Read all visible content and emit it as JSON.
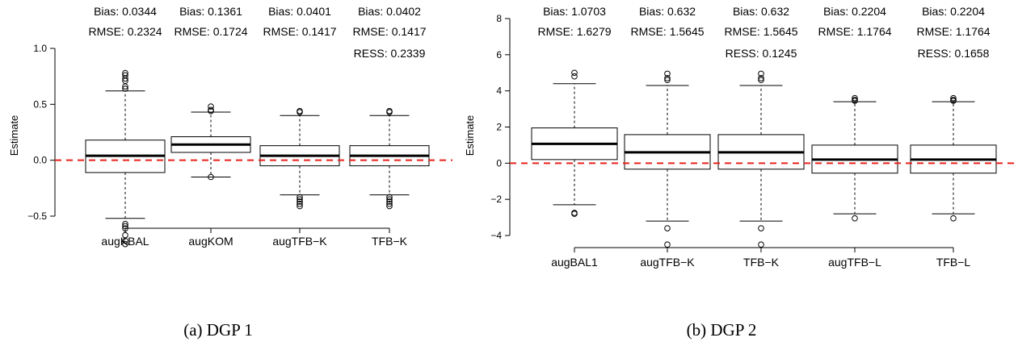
{
  "chart_data": [
    {
      "type": "boxplot",
      "caption": "(a) DGP 1",
      "ylabel": "Estimate",
      "ylim": [
        -0.8,
        1.0
      ],
      "yticks": [
        -0.5,
        0.0,
        0.5,
        1.0
      ],
      "ytick_labels": [
        "−0.5",
        "0.0",
        "0.5",
        "1.0"
      ],
      "reference_line": {
        "y": 0,
        "style": "dashed",
        "color": "#e8221b"
      },
      "boxes": [
        {
          "label": "augKBAL",
          "whisker_low": -0.52,
          "q1": -0.11,
          "median": 0.04,
          "q3": 0.18,
          "whisker_high": 0.62,
          "outliers": [
            0.78,
            0.76,
            0.73,
            0.71,
            0.66,
            0.64,
            -0.57,
            -0.59,
            -0.61,
            -0.67,
            -0.72,
            -0.75
          ],
          "stats": [
            "Bias: 0.0344",
            "RMSE: 0.2324"
          ]
        },
        {
          "label": "augKOM",
          "whisker_low": -0.15,
          "q1": 0.07,
          "median": 0.14,
          "q3": 0.21,
          "whisker_high": 0.43,
          "outliers": [
            0.48,
            0.45,
            0.44,
            -0.15
          ],
          "stats": [
            "Bias: 0.1361",
            "RMSE: 0.1724"
          ]
        },
        {
          "label": "augTFB−K",
          "whisker_low": -0.31,
          "q1": -0.05,
          "median": 0.04,
          "q3": 0.13,
          "whisker_high": 0.4,
          "outliers": [
            0.44,
            0.43,
            -0.33,
            -0.35,
            -0.37,
            -0.39,
            -0.41
          ],
          "stats": [
            "Bias: 0.0401",
            "RMSE: 0.1417"
          ]
        },
        {
          "label": "TFB−K",
          "whisker_low": -0.31,
          "q1": -0.05,
          "median": 0.04,
          "q3": 0.13,
          "whisker_high": 0.4,
          "outliers": [
            0.44,
            0.43,
            -0.33,
            -0.35,
            -0.37,
            -0.39,
            -0.41
          ],
          "stats": [
            "Bias: 0.0402",
            "RMSE: 0.1417",
            "RESS: 0.2339"
          ]
        }
      ]
    },
    {
      "type": "boxplot",
      "caption": "(b) DGP 2",
      "ylabel": "Estimate",
      "ylim": [
        -4.6,
        8.0
      ],
      "yticks": [
        -4,
        -2,
        0,
        2,
        4,
        6,
        8
      ],
      "ytick_labels": [
        "−4",
        "−2",
        "0",
        "2",
        "4",
        "6",
        "8"
      ],
      "reference_line": {
        "y": 0,
        "style": "dashed",
        "color": "#e8221b"
      },
      "boxes": [
        {
          "label": "augBAL1",
          "whisker_low": -2.3,
          "q1": 0.2,
          "median": 1.07,
          "q3": 1.95,
          "whisker_high": 4.4,
          "outliers": [
            5.0,
            4.8,
            -2.75,
            -2.8
          ],
          "stats": [
            "Bias: 1.0703",
            "RMSE: 1.6279"
          ]
        },
        {
          "label": "augTFB−K",
          "whisker_low": -3.2,
          "q1": -0.33,
          "median": 0.6,
          "q3": 1.58,
          "whisker_high": 4.3,
          "outliers": [
            4.95,
            4.7,
            4.6,
            -3.6,
            -4.5
          ],
          "stats": [
            "Bias: 0.632",
            "RMSE: 1.5645"
          ]
        },
        {
          "label": "TFB−K",
          "whisker_low": -3.2,
          "q1": -0.33,
          "median": 0.6,
          "q3": 1.58,
          "whisker_high": 4.3,
          "outliers": [
            4.95,
            4.7,
            4.6,
            -3.6,
            -4.5
          ],
          "stats": [
            "Bias: 0.632",
            "RMSE: 1.5645",
            "RESS: 0.1245"
          ]
        },
        {
          "label": "augTFB−L",
          "whisker_low": -2.8,
          "q1": -0.55,
          "median": 0.2,
          "q3": 1.0,
          "whisker_high": 3.4,
          "outliers": [
            3.6,
            3.5,
            3.45,
            -3.05
          ],
          "stats": [
            "Bias: 0.2204",
            "RMSE: 1.1764"
          ]
        },
        {
          "label": "TFB−L",
          "whisker_low": -2.8,
          "q1": -0.55,
          "median": 0.2,
          "q3": 1.0,
          "whisker_high": 3.4,
          "outliers": [
            3.6,
            3.5,
            3.45,
            -3.05
          ],
          "stats": [
            "Bias: 0.2204",
            "RMSE: 1.1764",
            "RESS: 0.1658"
          ]
        }
      ]
    }
  ]
}
